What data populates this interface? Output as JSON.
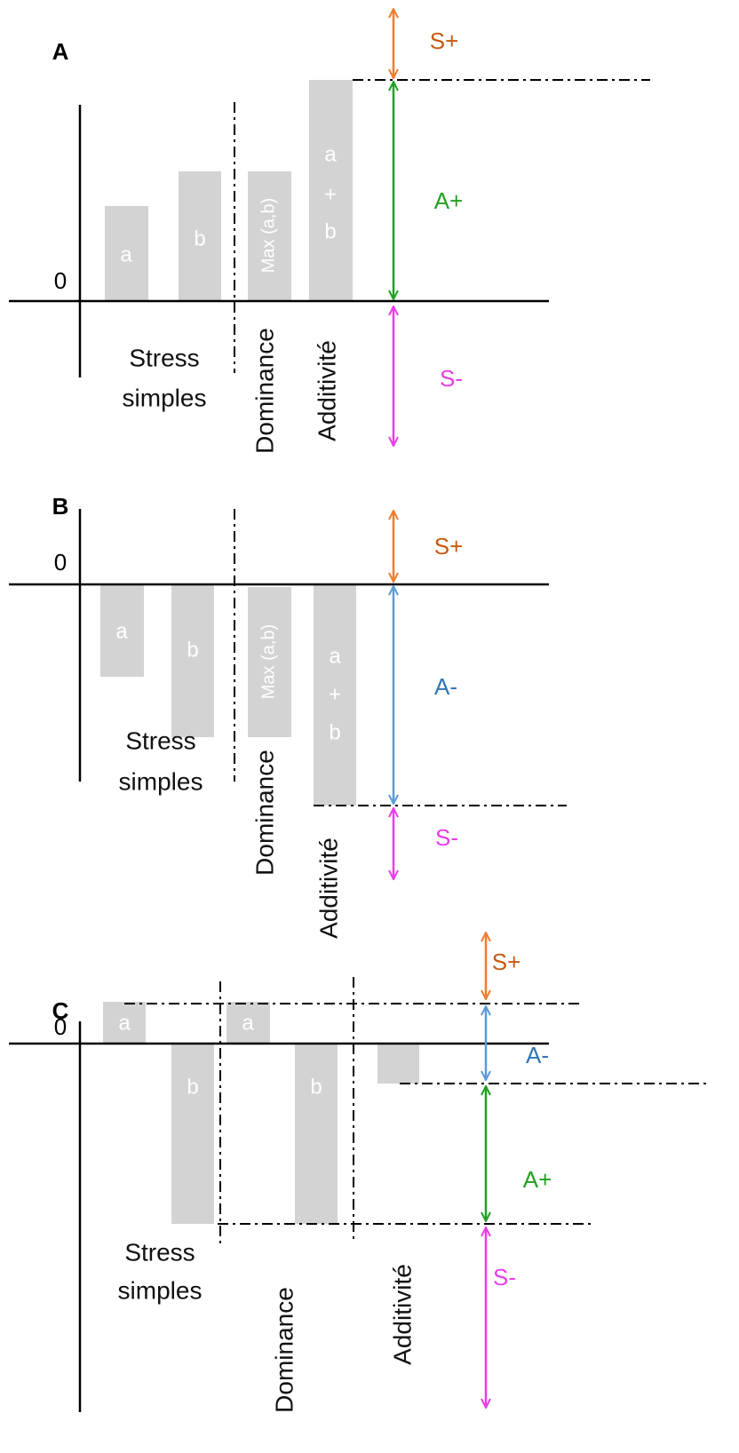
{
  "panels": [
    {
      "label": "A",
      "zero": "0",
      "bars": [
        {
          "label": "a"
        },
        {
          "label": "b"
        },
        {
          "label": "Max (a,b)"
        },
        {
          "label": [
            "a",
            "+",
            "b"
          ]
        }
      ],
      "groups": {
        "simple": [
          "Stress",
          "simples"
        ],
        "dominance": "Dominance",
        "additivity": "Additivité"
      },
      "arrows": [
        "S+",
        "A+",
        "S-"
      ]
    },
    {
      "label": "B",
      "zero": "0",
      "bars": [
        {
          "label": "a"
        },
        {
          "label": "b"
        },
        {
          "label": "Max (a,b)"
        },
        {
          "label": [
            "a",
            "+",
            "b"
          ]
        }
      ],
      "groups": {
        "simple": [
          "Stress",
          "simples"
        ],
        "dominance": "Dominance",
        "additivity": "Additivité"
      },
      "arrows": [
        "S+",
        "A-",
        "S-"
      ]
    },
    {
      "label": "C",
      "zero": "0",
      "bars": [
        {
          "label": "a"
        },
        {
          "label": "b"
        },
        {
          "label": "a"
        },
        {
          "label": "b"
        }
      ],
      "groups": {
        "simple": [
          "Stress",
          "simples"
        ],
        "dominance": "Dominance",
        "additivity": "Additivité"
      },
      "arrows": [
        "S+",
        "A-",
        "A+",
        "S-"
      ]
    }
  ]
}
